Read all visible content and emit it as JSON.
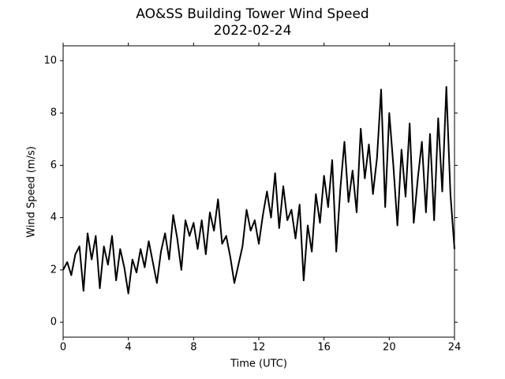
{
  "chart_data": {
    "type": "line",
    "title": "AO&SS Building Tower Wind Speed",
    "subtitle": "2022-02-24",
    "x_label": "Time (UTC)",
    "y_label": "Wind Speed (m/s)",
    "x": [
      0,
      0.25,
      0.5,
      0.75,
      1,
      1.25,
      1.5,
      1.75,
      2,
      2.25,
      2.5,
      2.75,
      3,
      3.25,
      3.5,
      3.75,
      4,
      4.25,
      4.5,
      4.75,
      5,
      5.25,
      5.5,
      5.75,
      6,
      6.25,
      6.5,
      6.75,
      7,
      7.25,
      7.5,
      7.75,
      8,
      8.25,
      8.5,
      8.75,
      9,
      9.25,
      9.5,
      9.75,
      10,
      10.25,
      10.5,
      10.75,
      11,
      11.25,
      11.5,
      11.75,
      12,
      12.25,
      12.5,
      12.75,
      13,
      13.25,
      13.5,
      13.75,
      14,
      14.25,
      14.5,
      14.75,
      15,
      15.25,
      15.5,
      15.75,
      16,
      16.25,
      16.5,
      16.75,
      17,
      17.25,
      17.5,
      17.75,
      18,
      18.25,
      18.5,
      18.75,
      19,
      19.25,
      19.5,
      19.75,
      20,
      20.25,
      20.5,
      20.75,
      21,
      21.25,
      21.5,
      21.75,
      22,
      22.25,
      22.5,
      22.75,
      23,
      23.25,
      23.5,
      23.75,
      24
    ],
    "series": [
      {
        "name": "Wind Speed",
        "color": "#000000",
        "values": [
          2.0,
          2.3,
          1.8,
          2.6,
          2.9,
          1.2,
          3.4,
          2.4,
          3.3,
          1.3,
          2.9,
          2.2,
          3.3,
          1.6,
          2.8,
          2.1,
          1.1,
          2.4,
          1.9,
          2.8,
          2.1,
          3.1,
          2.3,
          1.5,
          2.7,
          3.4,
          2.4,
          4.1,
          3.2,
          2.0,
          3.9,
          3.3,
          3.8,
          2.8,
          3.9,
          2.6,
          4.2,
          3.5,
          4.7,
          3.0,
          3.3,
          2.5,
          1.5,
          2.2,
          2.9,
          4.3,
          3.5,
          3.9,
          3.0,
          4.1,
          5.0,
          4.0,
          5.7,
          3.6,
          5.2,
          3.9,
          4.3,
          3.2,
          4.5,
          1.6,
          3.7,
          2.7,
          4.9,
          3.8,
          5.6,
          4.4,
          6.2,
          2.7,
          5.1,
          6.9,
          4.6,
          5.8,
          4.2,
          7.4,
          5.5,
          6.8,
          4.9,
          6.3,
          8.9,
          4.4,
          8.0,
          6.0,
          3.7,
          6.6,
          4.8,
          7.6,
          3.8,
          5.5,
          6.9,
          4.2,
          7.2,
          3.9,
          7.8,
          5.0,
          9.0,
          4.9,
          2.8
        ]
      }
    ],
    "xlim": [
      0,
      24
    ],
    "xticks": [
      0,
      4,
      8,
      12,
      16,
      20,
      24
    ],
    "ylim": [
      -0.57,
      10.57
    ],
    "yticks": [
      0,
      2,
      4,
      6,
      8,
      10
    ]
  }
}
